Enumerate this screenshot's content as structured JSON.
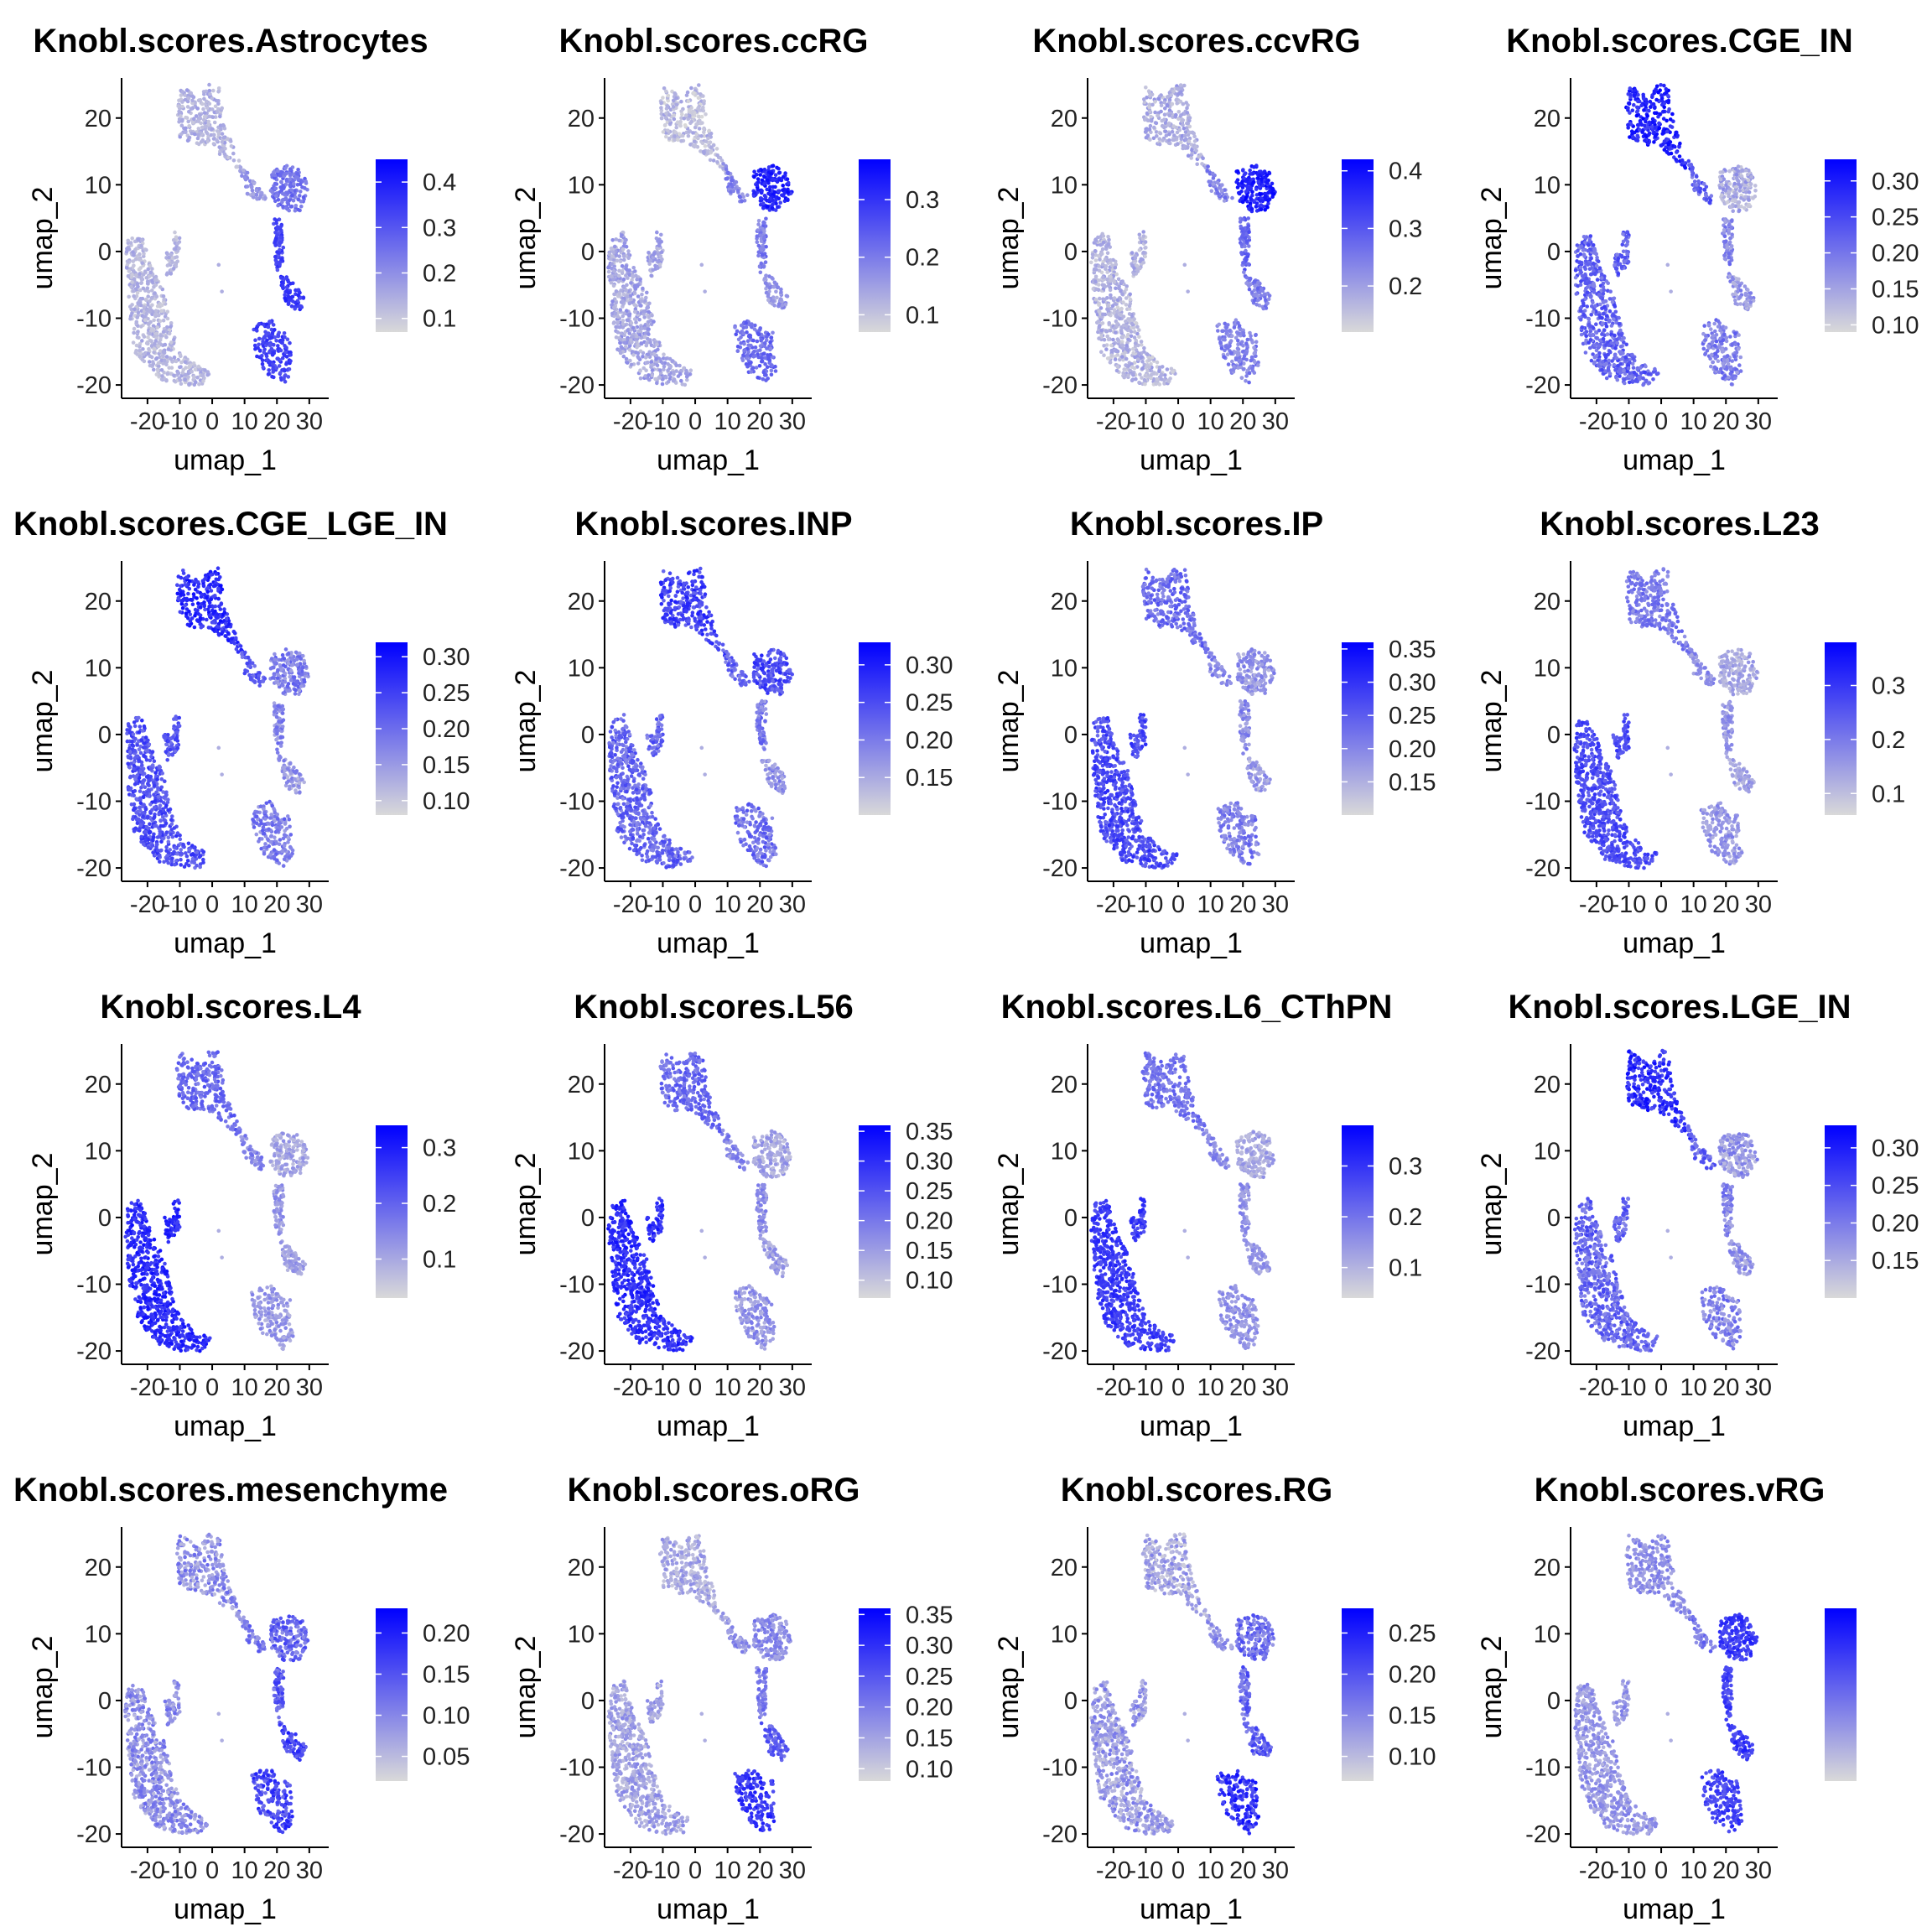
{
  "colors": {
    "low": "#d9d9d9",
    "high": "#0000ff"
  },
  "chart_data": [
    {
      "type": "scatter",
      "title": "Knobl.scores.Astrocytes",
      "xlabel": "umap_1",
      "ylabel": "umap_2",
      "xlim": [
        -28,
        36
      ],
      "ylim": [
        -22,
        26
      ],
      "xticks": [
        "-20",
        "-10",
        "0",
        "10",
        "20",
        "30"
      ],
      "yticks": [
        "-20",
        "-10",
        "0",
        "10",
        "20"
      ],
      "legend": {
        "position": "right",
        "labels": [
          "0.4",
          "0.3",
          "0.2",
          "0.1"
        ],
        "range": [
          0.07,
          0.45
        ],
        "values": [
          0.4,
          0.3,
          0.2,
          0.1
        ]
      },
      "cluster_scores": {
        "top": 0.14,
        "bridge": 0.18,
        "right_upper": 0.25,
        "right_mid": 0.33,
        "right_lower": 0.36,
        "left": 0.13,
        "blob": 0.34
      }
    },
    {
      "type": "scatter",
      "title": "Knobl.scores.ccRG",
      "xlabel": "umap_1",
      "ylabel": "umap_2",
      "xlim": [
        -28,
        36
      ],
      "ylim": [
        -22,
        26
      ],
      "xticks": [
        "-20",
        "-10",
        "0",
        "10",
        "20",
        "30"
      ],
      "yticks": [
        "-20",
        "-10",
        "0",
        "10",
        "20"
      ],
      "legend": {
        "position": "right",
        "labels": [
          "0.3",
          "0.2",
          "0.1"
        ],
        "range": [
          0.07,
          0.37
        ],
        "values": [
          0.3,
          0.2,
          0.1
        ]
      },
      "cluster_scores": {
        "top": 0.11,
        "bridge": 0.18,
        "right_upper": 0.32,
        "right_mid": 0.2,
        "right_lower": 0.16,
        "left": 0.14,
        "blob": 0.22
      }
    },
    {
      "type": "scatter",
      "title": "Knobl.scores.ccvRG",
      "xlabel": "umap_1",
      "ylabel": "umap_2",
      "xlim": [
        -28,
        36
      ],
      "ylim": [
        -22,
        26
      ],
      "xticks": [
        "-20",
        "-10",
        "0",
        "10",
        "20",
        "30"
      ],
      "yticks": [
        "-20",
        "-10",
        "0",
        "10",
        "20"
      ],
      "legend": {
        "position": "right",
        "labels": [
          "0.4",
          "0.3",
          "0.2"
        ],
        "range": [
          0.12,
          0.42
        ],
        "values": [
          0.4,
          0.3,
          0.2
        ]
      },
      "cluster_scores": {
        "top": 0.18,
        "bridge": 0.24,
        "right_upper": 0.38,
        "right_mid": 0.28,
        "right_lower": 0.25,
        "left": 0.17,
        "blob": 0.24
      }
    },
    {
      "type": "scatter",
      "title": "Knobl.scores.CGE_IN",
      "xlabel": "umap_1",
      "ylabel": "umap_2",
      "xlim": [
        -28,
        36
      ],
      "ylim": [
        -22,
        26
      ],
      "xticks": [
        "-20",
        "-10",
        "0",
        "10",
        "20",
        "30"
      ],
      "yticks": [
        "-20",
        "-10",
        "0",
        "10",
        "20"
      ],
      "legend": {
        "position": "right",
        "labels": [
          "0.30",
          "0.25",
          "0.20",
          "0.15",
          "0.10"
        ],
        "range": [
          0.09,
          0.33
        ],
        "values": [
          0.3,
          0.25,
          0.2,
          0.15,
          0.1
        ]
      },
      "cluster_scores": {
        "top": 0.29,
        "bridge": 0.22,
        "right_upper": 0.14,
        "right_mid": 0.18,
        "right_lower": 0.16,
        "left": 0.22,
        "blob": 0.19
      }
    },
    {
      "type": "scatter",
      "title": "Knobl.scores.CGE_LGE_IN",
      "xlabel": "umap_1",
      "ylabel": "umap_2",
      "xlim": [
        -28,
        36
      ],
      "ylim": [
        -22,
        26
      ],
      "xticks": [
        "-20",
        "-10",
        "0",
        "10",
        "20",
        "30"
      ],
      "yticks": [
        "-20",
        "-10",
        "0",
        "10",
        "20"
      ],
      "legend": {
        "position": "right",
        "labels": [
          "0.30",
          "0.25",
          "0.20",
          "0.15",
          "0.10"
        ],
        "range": [
          0.08,
          0.32
        ],
        "values": [
          0.3,
          0.25,
          0.2,
          0.15,
          0.1
        ]
      },
      "cluster_scores": {
        "top": 0.27,
        "bridge": 0.22,
        "right_upper": 0.18,
        "right_mid": 0.17,
        "right_lower": 0.15,
        "left": 0.23,
        "blob": 0.18
      }
    },
    {
      "type": "scatter",
      "title": "Knobl.scores.INP",
      "xlabel": "umap_1",
      "ylabel": "umap_2",
      "xlim": [
        -28,
        36
      ],
      "ylim": [
        -22,
        26
      ],
      "xticks": [
        "-20",
        "-10",
        "0",
        "10",
        "20",
        "30"
      ],
      "yticks": [
        "-20",
        "-10",
        "0",
        "10",
        "20"
      ],
      "legend": {
        "position": "right",
        "labels": [
          "0.30",
          "0.25",
          "0.20",
          "0.15"
        ],
        "range": [
          0.1,
          0.33
        ],
        "values": [
          0.3,
          0.25,
          0.2,
          0.15
        ]
      },
      "cluster_scores": {
        "top": 0.26,
        "bridge": 0.22,
        "right_upper": 0.25,
        "right_mid": 0.2,
        "right_lower": 0.18,
        "left": 0.22,
        "blob": 0.21
      }
    },
    {
      "type": "scatter",
      "title": "Knobl.scores.IP",
      "xlabel": "umap_1",
      "ylabel": "umap_2",
      "xlim": [
        -28,
        36
      ],
      "ylim": [
        -22,
        26
      ],
      "xticks": [
        "-20",
        "-10",
        "0",
        "10",
        "20",
        "30"
      ],
      "yticks": [
        "-20",
        "-10",
        "0",
        "10",
        "20"
      ],
      "legend": {
        "position": "right",
        "labels": [
          "0.35",
          "0.30",
          "0.25",
          "0.20",
          "0.15"
        ],
        "range": [
          0.1,
          0.36
        ],
        "values": [
          0.35,
          0.3,
          0.25,
          0.2,
          0.15
        ]
      },
      "cluster_scores": {
        "top": 0.23,
        "bridge": 0.2,
        "right_upper": 0.18,
        "right_mid": 0.19,
        "right_lower": 0.17,
        "left": 0.27,
        "blob": 0.21
      }
    },
    {
      "type": "scatter",
      "title": "Knobl.scores.L23",
      "xlabel": "umap_1",
      "ylabel": "umap_2",
      "xlim": [
        -28,
        36
      ],
      "ylim": [
        -22,
        26
      ],
      "xticks": [
        "-20",
        "-10",
        "0",
        "10",
        "20",
        "30"
      ],
      "yticks": [
        "-20",
        "-10",
        "0",
        "10",
        "20"
      ],
      "legend": {
        "position": "right",
        "labels": [
          "0.3",
          "0.2",
          "0.1"
        ],
        "range": [
          0.06,
          0.38
        ],
        "values": [
          0.3,
          0.2,
          0.1
        ]
      },
      "cluster_scores": {
        "top": 0.2,
        "bridge": 0.17,
        "right_upper": 0.13,
        "right_mid": 0.16,
        "right_lower": 0.14,
        "left": 0.27,
        "blob": 0.16
      }
    },
    {
      "type": "scatter",
      "title": "Knobl.scores.L4",
      "xlabel": "umap_1",
      "ylabel": "umap_2",
      "xlim": [
        -28,
        36
      ],
      "ylim": [
        -22,
        26
      ],
      "xticks": [
        "-20",
        "-10",
        "0",
        "10",
        "20",
        "30"
      ],
      "yticks": [
        "-20",
        "-10",
        "0",
        "10",
        "20"
      ],
      "legend": {
        "position": "right",
        "labels": [
          "0.3",
          "0.2",
          "0.1"
        ],
        "range": [
          0.03,
          0.34
        ],
        "values": [
          0.3,
          0.2,
          0.1
        ]
      },
      "cluster_scores": {
        "top": 0.19,
        "bridge": 0.15,
        "right_upper": 0.1,
        "right_mid": 0.13,
        "right_lower": 0.11,
        "left": 0.28,
        "blob": 0.12
      }
    },
    {
      "type": "scatter",
      "title": "Knobl.scores.L56",
      "xlabel": "umap_1",
      "ylabel": "umap_2",
      "xlim": [
        -28,
        36
      ],
      "ylim": [
        -22,
        26
      ],
      "xticks": [
        "-20",
        "-10",
        "0",
        "10",
        "20",
        "30"
      ],
      "yticks": [
        "-20",
        "-10",
        "0",
        "10",
        "20"
      ],
      "legend": {
        "position": "right",
        "labels": [
          "0.35",
          "0.30",
          "0.25",
          "0.20",
          "0.15",
          "0.10"
        ],
        "range": [
          0.07,
          0.36
        ],
        "values": [
          0.35,
          0.3,
          0.25,
          0.2,
          0.15,
          0.1
        ]
      },
      "cluster_scores": {
        "top": 0.22,
        "bridge": 0.18,
        "right_upper": 0.14,
        "right_mid": 0.17,
        "right_lower": 0.15,
        "left": 0.3,
        "blob": 0.16
      }
    },
    {
      "type": "scatter",
      "title": "Knobl.scores.L6_CThPN",
      "xlabel": "umap_1",
      "ylabel": "umap_2",
      "xlim": [
        -28,
        36
      ],
      "ylim": [
        -22,
        26
      ],
      "xticks": [
        "-20",
        "-10",
        "0",
        "10",
        "20",
        "30"
      ],
      "yticks": [
        "-20",
        "-10",
        "0",
        "10",
        "20"
      ],
      "legend": {
        "position": "right",
        "labels": [
          "0.3",
          "0.2",
          "0.1"
        ],
        "range": [
          0.04,
          0.38
        ],
        "values": [
          0.3,
          0.2,
          0.1
        ]
      },
      "cluster_scores": {
        "top": 0.2,
        "bridge": 0.16,
        "right_upper": 0.12,
        "right_mid": 0.15,
        "right_lower": 0.14,
        "left": 0.29,
        "blob": 0.15
      }
    },
    {
      "type": "scatter",
      "title": "Knobl.scores.LGE_IN",
      "xlabel": "umap_1",
      "ylabel": "umap_2",
      "xlim": [
        -28,
        36
      ],
      "ylim": [
        -22,
        26
      ],
      "xticks": [
        "-20",
        "-10",
        "0",
        "10",
        "20",
        "30"
      ],
      "yticks": [
        "-20",
        "-10",
        "0",
        "10",
        "20"
      ],
      "legend": {
        "position": "right",
        "labels": [
          "0.30",
          "0.25",
          "0.20",
          "0.15"
        ],
        "range": [
          0.1,
          0.33
        ],
        "values": [
          0.3,
          0.25,
          0.2,
          0.15
        ]
      },
      "cluster_scores": {
        "top": 0.28,
        "bridge": 0.22,
        "right_upper": 0.17,
        "right_mid": 0.19,
        "right_lower": 0.17,
        "left": 0.22,
        "blob": 0.19
      }
    },
    {
      "type": "scatter",
      "title": "Knobl.scores.mesenchyme",
      "xlabel": "umap_1",
      "ylabel": "umap_2",
      "xlim": [
        -28,
        36
      ],
      "ylim": [
        -22,
        26
      ],
      "xticks": [
        "-20",
        "-10",
        "0",
        "10",
        "20",
        "30"
      ],
      "yticks": [
        "-20",
        "-10",
        "0",
        "10",
        "20"
      ],
      "legend": {
        "position": "right",
        "labels": [
          "0.20",
          "0.15",
          "0.10",
          "0.05"
        ],
        "range": [
          0.02,
          0.23
        ],
        "values": [
          0.2,
          0.15,
          0.1,
          0.05
        ]
      },
      "cluster_scores": {
        "top": 0.09,
        "bridge": 0.11,
        "right_upper": 0.13,
        "right_mid": 0.14,
        "right_lower": 0.17,
        "left": 0.09,
        "blob": 0.16
      }
    },
    {
      "type": "scatter",
      "title": "Knobl.scores.oRG",
      "xlabel": "umap_1",
      "ylabel": "umap_2",
      "xlim": [
        -28,
        36
      ],
      "ylim": [
        -22,
        26
      ],
      "xticks": [
        "-20",
        "-10",
        "0",
        "10",
        "20",
        "30"
      ],
      "yticks": [
        "-20",
        "-10",
        "0",
        "10",
        "20"
      ],
      "legend": {
        "position": "right",
        "labels": [
          "0.35",
          "0.30",
          "0.25",
          "0.20",
          "0.15",
          "0.10"
        ],
        "range": [
          0.08,
          0.36
        ],
        "values": [
          0.35,
          0.3,
          0.25,
          0.2,
          0.15,
          0.1
        ]
      },
      "cluster_scores": {
        "top": 0.14,
        "bridge": 0.17,
        "right_upper": 0.18,
        "right_mid": 0.2,
        "right_lower": 0.24,
        "left": 0.15,
        "blob": 0.29
      }
    },
    {
      "type": "scatter",
      "title": "Knobl.scores.RG",
      "xlabel": "umap_1",
      "ylabel": "umap_2",
      "xlim": [
        -28,
        36
      ],
      "ylim": [
        -22,
        26
      ],
      "xticks": [
        "-20",
        "-10",
        "0",
        "10",
        "20",
        "30"
      ],
      "yticks": [
        "-20",
        "-10",
        "0",
        "10",
        "20"
      ],
      "legend": {
        "position": "right",
        "labels": [
          "0.25",
          "0.20",
          "0.15",
          "0.10"
        ],
        "range": [
          0.07,
          0.28
        ],
        "values": [
          0.25,
          0.2,
          0.15,
          0.1
        ]
      },
      "cluster_scores": {
        "top": 0.12,
        "bridge": 0.14,
        "right_upper": 0.17,
        "right_mid": 0.18,
        "right_lower": 0.19,
        "left": 0.13,
        "blob": 0.23
      }
    },
    {
      "type": "scatter",
      "title": "Knobl.scores.vRG",
      "xlabel": "umap_1",
      "ylabel": "umap_2",
      "xlim": [
        -28,
        36
      ],
      "ylim": [
        -22,
        26
      ],
      "xticks": [
        "-20",
        "-10",
        "0",
        "10",
        "20",
        "30"
      ],
      "yticks": [
        "-20",
        "-10",
        "0",
        "10",
        "20"
      ],
      "legend": {
        "position": "right",
        "labels": [],
        "range": [
          0.05,
          0.35
        ],
        "values": []
      },
      "cluster_scores": {
        "top": 0.15,
        "bridge": 0.19,
        "right_upper": 0.27,
        "right_mid": 0.26,
        "right_lower": 0.27,
        "left": 0.14,
        "blob": 0.26
      }
    }
  ]
}
